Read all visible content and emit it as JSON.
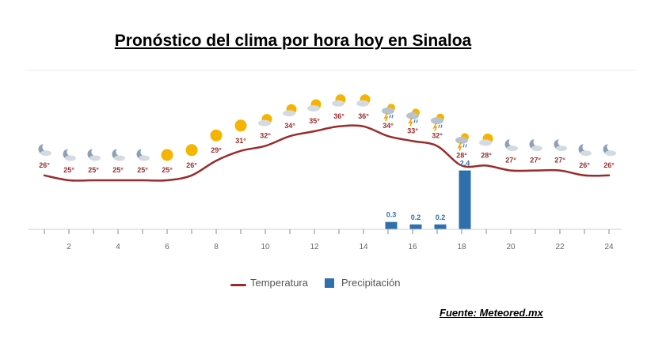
{
  "title": "Pronóstico del clima por hora hoy en Sinaloa",
  "source": "Fuente: Meteored.mx",
  "legend": {
    "temperature": "Temperatura",
    "precipitation": "Precipitación"
  },
  "colors": {
    "temperature": "#9b2b2b",
    "precipitation": "#2f6fab",
    "axis": "#cfcfcf",
    "tick_text": "#666666",
    "sun": "#f5b400",
    "moon": "#8ea0b6",
    "cloud": "#d4dae2"
  },
  "chart_data": {
    "type": "line",
    "x": [
      1,
      2,
      3,
      4,
      5,
      6,
      7,
      8,
      9,
      10,
      11,
      12,
      13,
      14,
      15,
      16,
      17,
      18,
      19,
      20,
      21,
      22,
      23,
      24
    ],
    "x_ticks": [
      2,
      4,
      6,
      8,
      10,
      12,
      14,
      16,
      18,
      20,
      22,
      24
    ],
    "series": [
      {
        "name": "Temperatura",
        "type": "line",
        "unit": "°",
        "values": [
          26,
          25,
          25,
          25,
          25,
          25,
          26,
          29,
          31,
          32,
          34,
          35,
          36,
          36,
          34,
          33,
          32,
          28,
          28,
          27,
          27,
          27,
          26,
          26
        ]
      },
      {
        "name": "Precipitación",
        "type": "bar",
        "values": [
          0,
          0,
          0,
          0,
          0,
          0,
          0,
          0,
          0,
          0,
          0,
          0,
          0,
          0,
          0.3,
          0.2,
          0.2,
          2.4,
          0,
          0,
          0,
          0,
          0,
          0
        ]
      }
    ],
    "icons": [
      "moon-cloud",
      "moon-cloud",
      "moon-cloud",
      "moon-cloud",
      "moon-cloud",
      "sun",
      "sun",
      "sun",
      "sun",
      "sun-cloud",
      "sun-cloud",
      "sun-cloud",
      "sun-cloud",
      "sun-cloud",
      "storm",
      "storm",
      "storm",
      "storm",
      "sun-cloud",
      "moon-cloud",
      "moon-cloud",
      "moon-cloud",
      "moon-cloud",
      "moon-cloud"
    ],
    "precip_labels": {
      "15": "0.3",
      "16": "0.2",
      "17": "0.2",
      "18": "2.4"
    },
    "legend_position": "bottom",
    "grid": false
  }
}
